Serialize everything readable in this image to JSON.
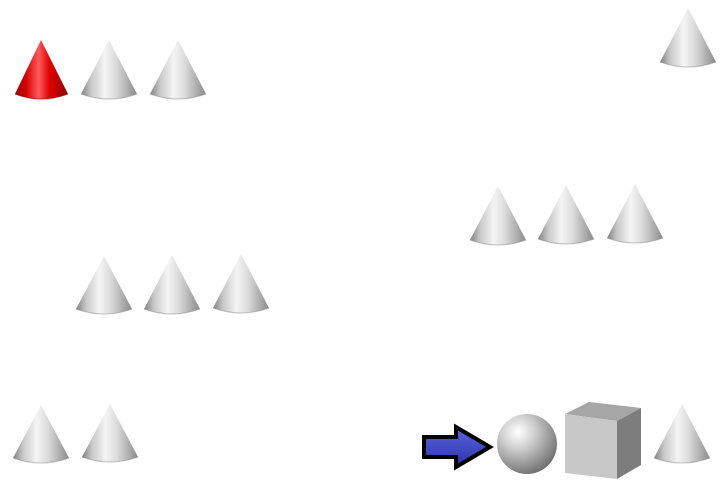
{
  "scene": {
    "background": "#ffffff",
    "objects": [
      {
        "kind": "cone",
        "color": "red",
        "group": "top-left-row"
      },
      {
        "kind": "cone",
        "color": "grey",
        "group": "top-left-row"
      },
      {
        "kind": "cone",
        "color": "grey",
        "group": "top-left-row"
      },
      {
        "kind": "cone",
        "color": "grey",
        "group": "top-right-single"
      },
      {
        "kind": "cone",
        "color": "grey",
        "group": "middle-right-row"
      },
      {
        "kind": "cone",
        "color": "grey",
        "group": "middle-right-row"
      },
      {
        "kind": "cone",
        "color": "grey",
        "group": "middle-right-row"
      },
      {
        "kind": "cone",
        "color": "grey",
        "group": "middle-left-row"
      },
      {
        "kind": "cone",
        "color": "grey",
        "group": "middle-left-row"
      },
      {
        "kind": "cone",
        "color": "grey",
        "group": "middle-left-row"
      },
      {
        "kind": "cone",
        "color": "grey",
        "group": "bottom-left-row"
      },
      {
        "kind": "cone",
        "color": "grey",
        "group": "bottom-left-row"
      },
      {
        "kind": "arrow",
        "color": "blue",
        "direction": "right",
        "group": "bottom-right-sequence"
      },
      {
        "kind": "sphere",
        "color": "grey",
        "group": "bottom-right-sequence"
      },
      {
        "kind": "cube",
        "color": "grey",
        "group": "bottom-right-sequence"
      },
      {
        "kind": "cone",
        "color": "grey",
        "group": "bottom-right-sequence"
      }
    ]
  }
}
